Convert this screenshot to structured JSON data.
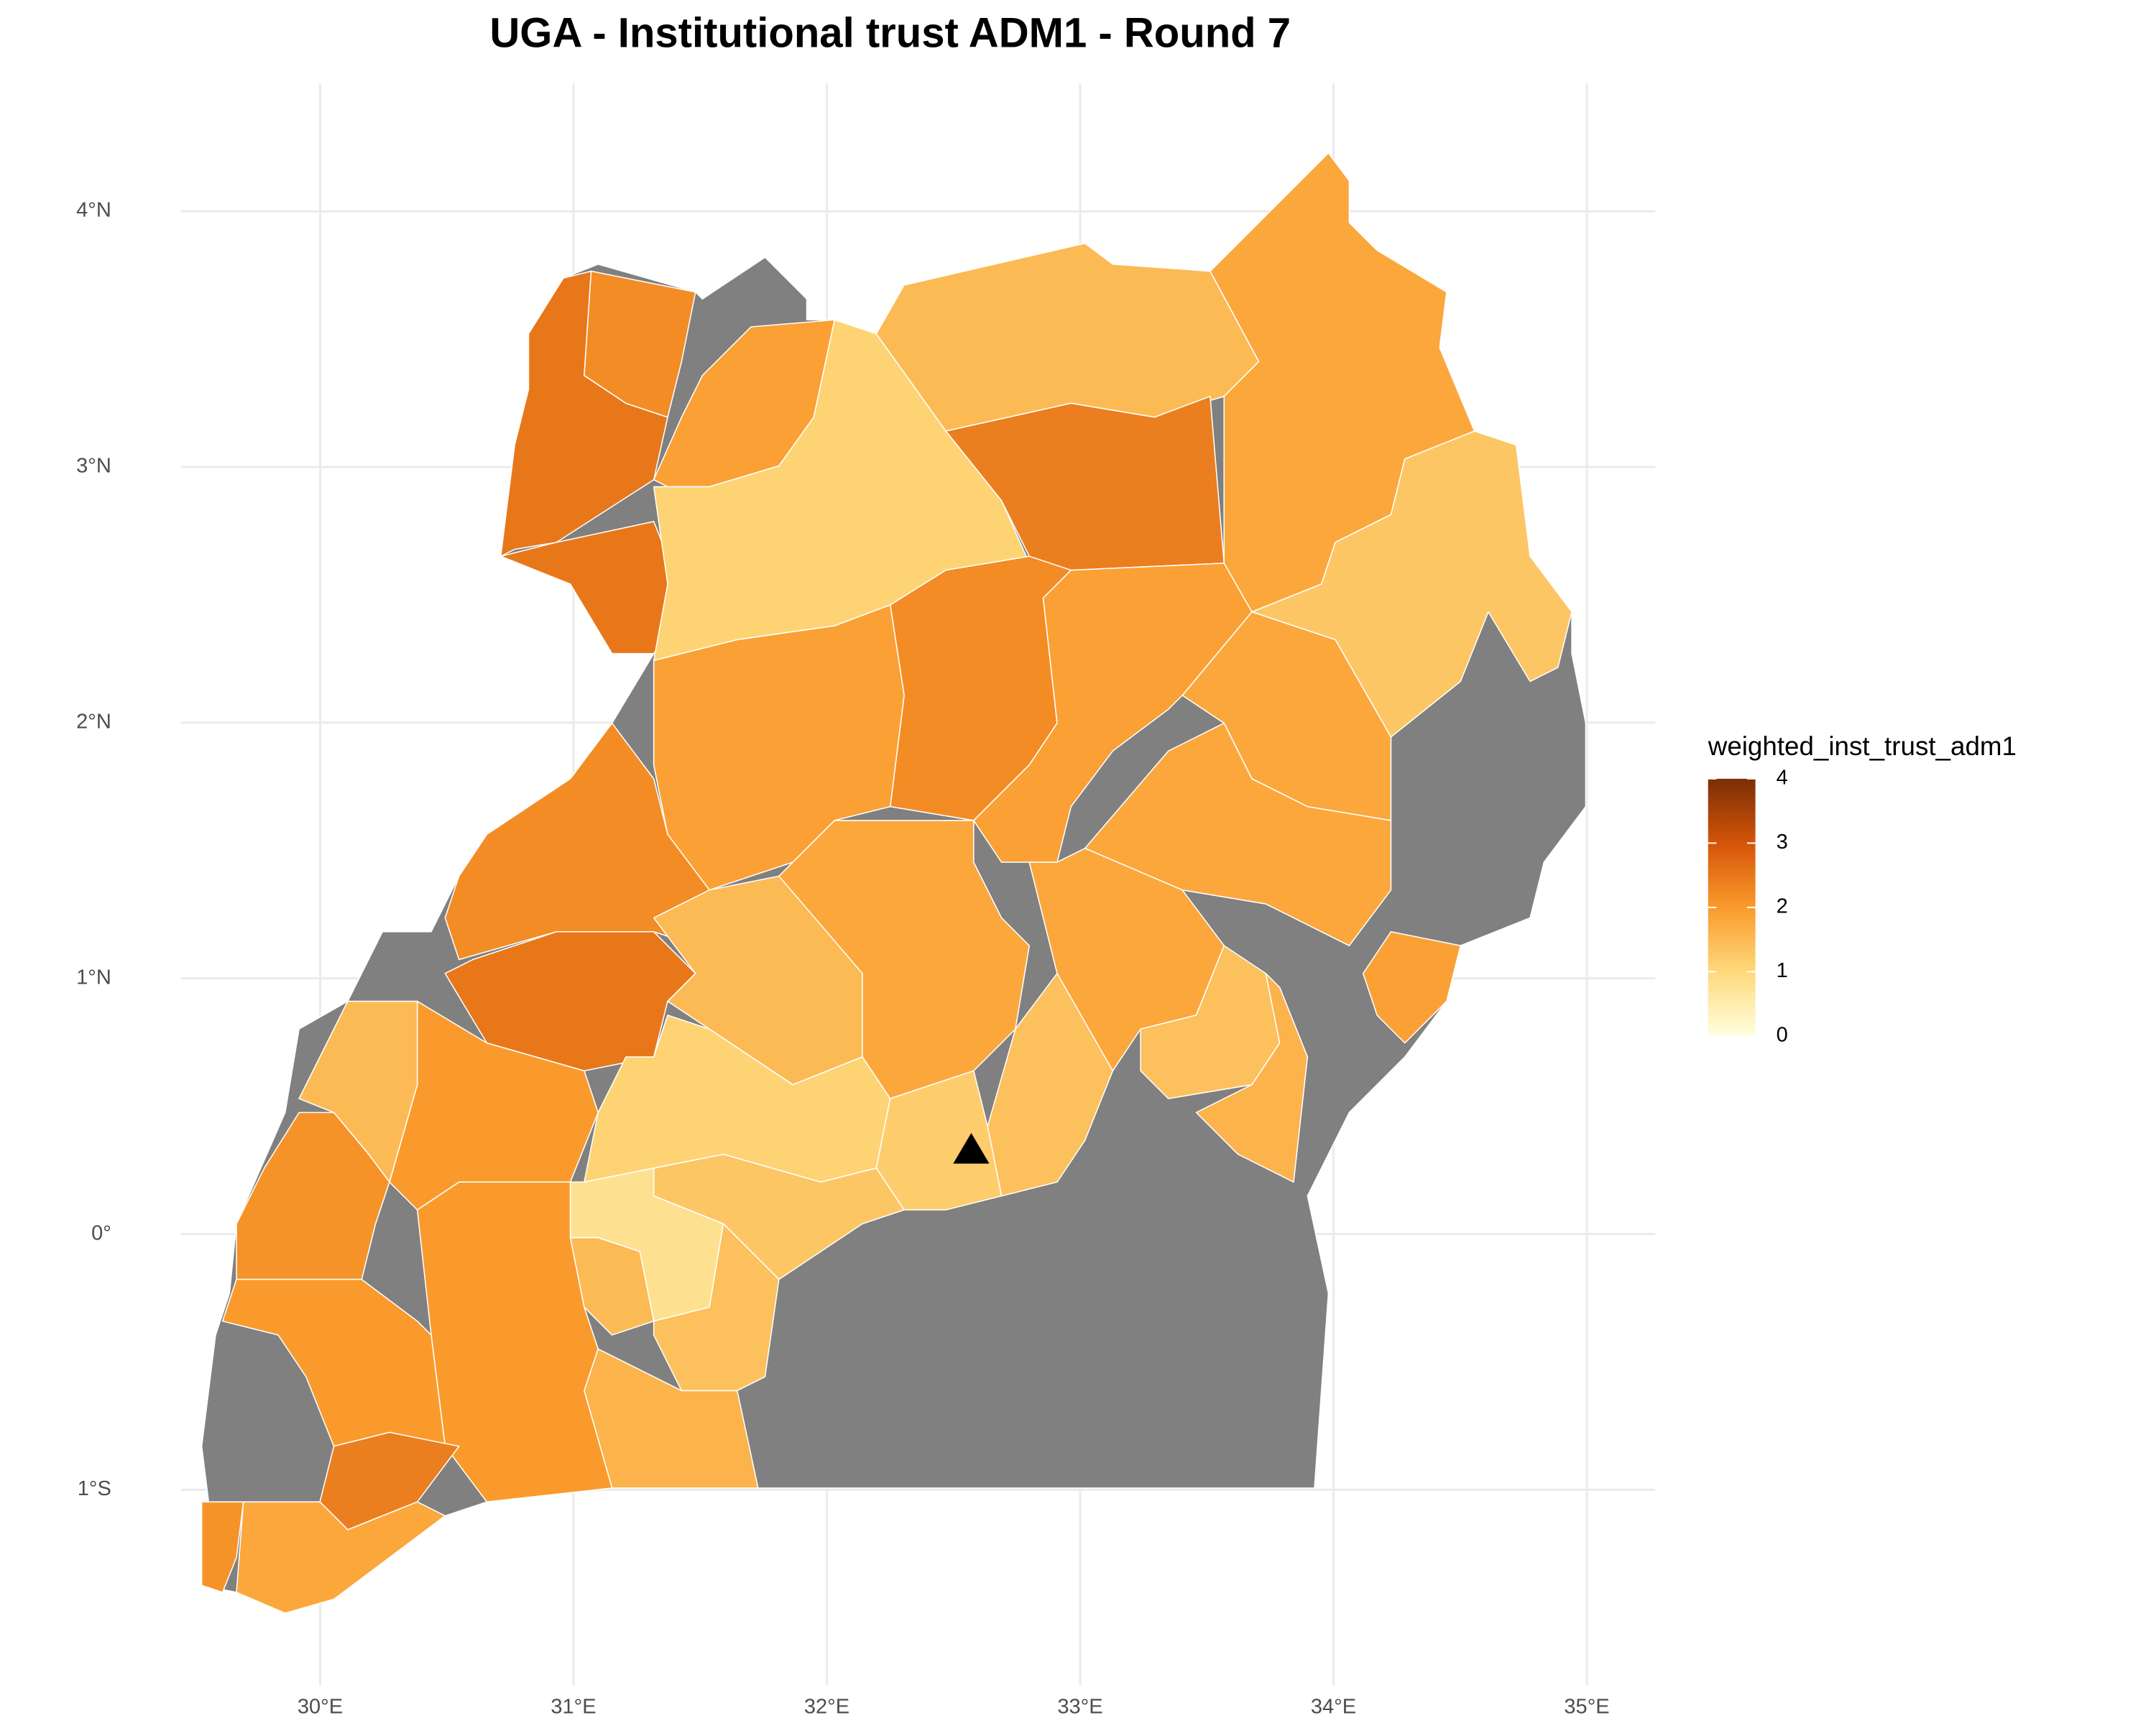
{
  "chart_data": {
    "type": "choropleth",
    "title": "UGA - Institutional trust ADM1 - Round 7",
    "xlim": [
      29.45,
      35.27
    ],
    "ylim": [
      -1.7,
      4.5
    ],
    "xticks": [
      {
        "value": 30,
        "label": "30°E"
      },
      {
        "value": 31,
        "label": "31°E"
      },
      {
        "value": 32,
        "label": "32°E"
      },
      {
        "value": 33,
        "label": "33°E"
      },
      {
        "value": 34,
        "label": "34°E"
      },
      {
        "value": 35,
        "label": "35°E"
      }
    ],
    "yticks": [
      {
        "value": -1,
        "label": "1°S"
      },
      {
        "value": 0,
        "label": "0°"
      },
      {
        "value": 1,
        "label": "1°N"
      },
      {
        "value": 2,
        "label": "2°N"
      },
      {
        "value": 3,
        "label": "3°N"
      },
      {
        "value": 4,
        "label": "4°N"
      }
    ],
    "grid": true,
    "legend_title": "weighted_inst_trust_adm1",
    "legend_lim": [
      0,
      4
    ],
    "legend_ticks": [
      0,
      1,
      2,
      3,
      4
    ],
    "colors": [
      "#ffffe0",
      "#fed97c",
      "#fa9a2c",
      "#d55408",
      "#7a2e06"
    ],
    "na_color": "#808080",
    "values": [
      2.5,
      2.2,
      2.5,
      1.9,
      1.1,
      1.5,
      2.4,
      1.8,
      1.3,
      1.8,
      2.2,
      1.9,
      1.9,
      1.8,
      2.2,
      2.5,
      1.5,
      1.8,
      1.8,
      1.4,
      1.4,
      1.6,
      1.9,
      1.1,
      1.2,
      1.3,
      0.8,
      1.5,
      1.4,
      1.6,
      2.0,
      2.0,
      1.5,
      2.1,
      2.0,
      2.4,
      2.1,
      1.8
    ],
    "marker": {
      "x": 32.57,
      "y": 0.33
    }
  }
}
